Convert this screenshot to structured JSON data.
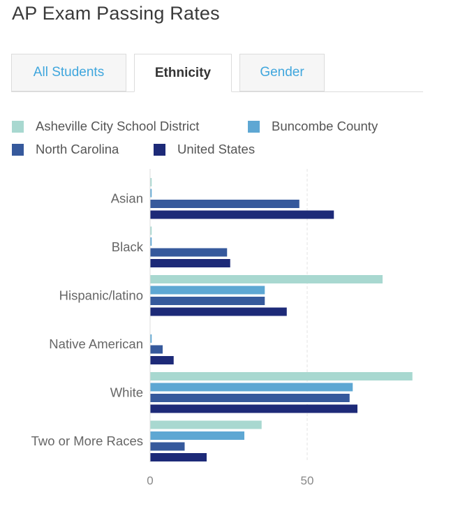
{
  "page": {
    "title": "AP Exam Passing Rates"
  },
  "tabs": [
    {
      "label": "All Students",
      "active": false
    },
    {
      "label": "Ethnicity",
      "active": true
    },
    {
      "label": "Gender",
      "active": false
    }
  ],
  "colors": {
    "tab_link": "#3fa6dd",
    "axis_label": "#666666",
    "gridline": "#e3e3e3"
  },
  "chart_data": {
    "type": "bar",
    "orientation": "horizontal",
    "title": "",
    "xlabel": "",
    "ylabel": "",
    "categories": [
      "Asian",
      "Black",
      "Hispanic/latino",
      "Native American",
      "White",
      "Two or More Races"
    ],
    "series": [
      {
        "name": "Asheville City School District",
        "color": "#a8d8d0",
        "values": [
          0.5,
          0.5,
          74,
          0,
          83.5,
          35.5
        ]
      },
      {
        "name": "Buncombe County",
        "color": "#5ea7d3",
        "values": [
          0.5,
          0.5,
          36.5,
          0.5,
          64.5,
          30
        ]
      },
      {
        "name": "North Carolina",
        "color": "#36599c",
        "values": [
          47.5,
          24.5,
          36.5,
          4,
          63.5,
          11
        ]
      },
      {
        "name": "United States",
        "color": "#1d2a78",
        "values": [
          58.5,
          25.5,
          43.5,
          7.5,
          66,
          18
        ]
      }
    ],
    "x_ticks": [
      0,
      50
    ],
    "xlim": [
      0,
      95
    ],
    "grid": true,
    "legend_position": "top"
  }
}
